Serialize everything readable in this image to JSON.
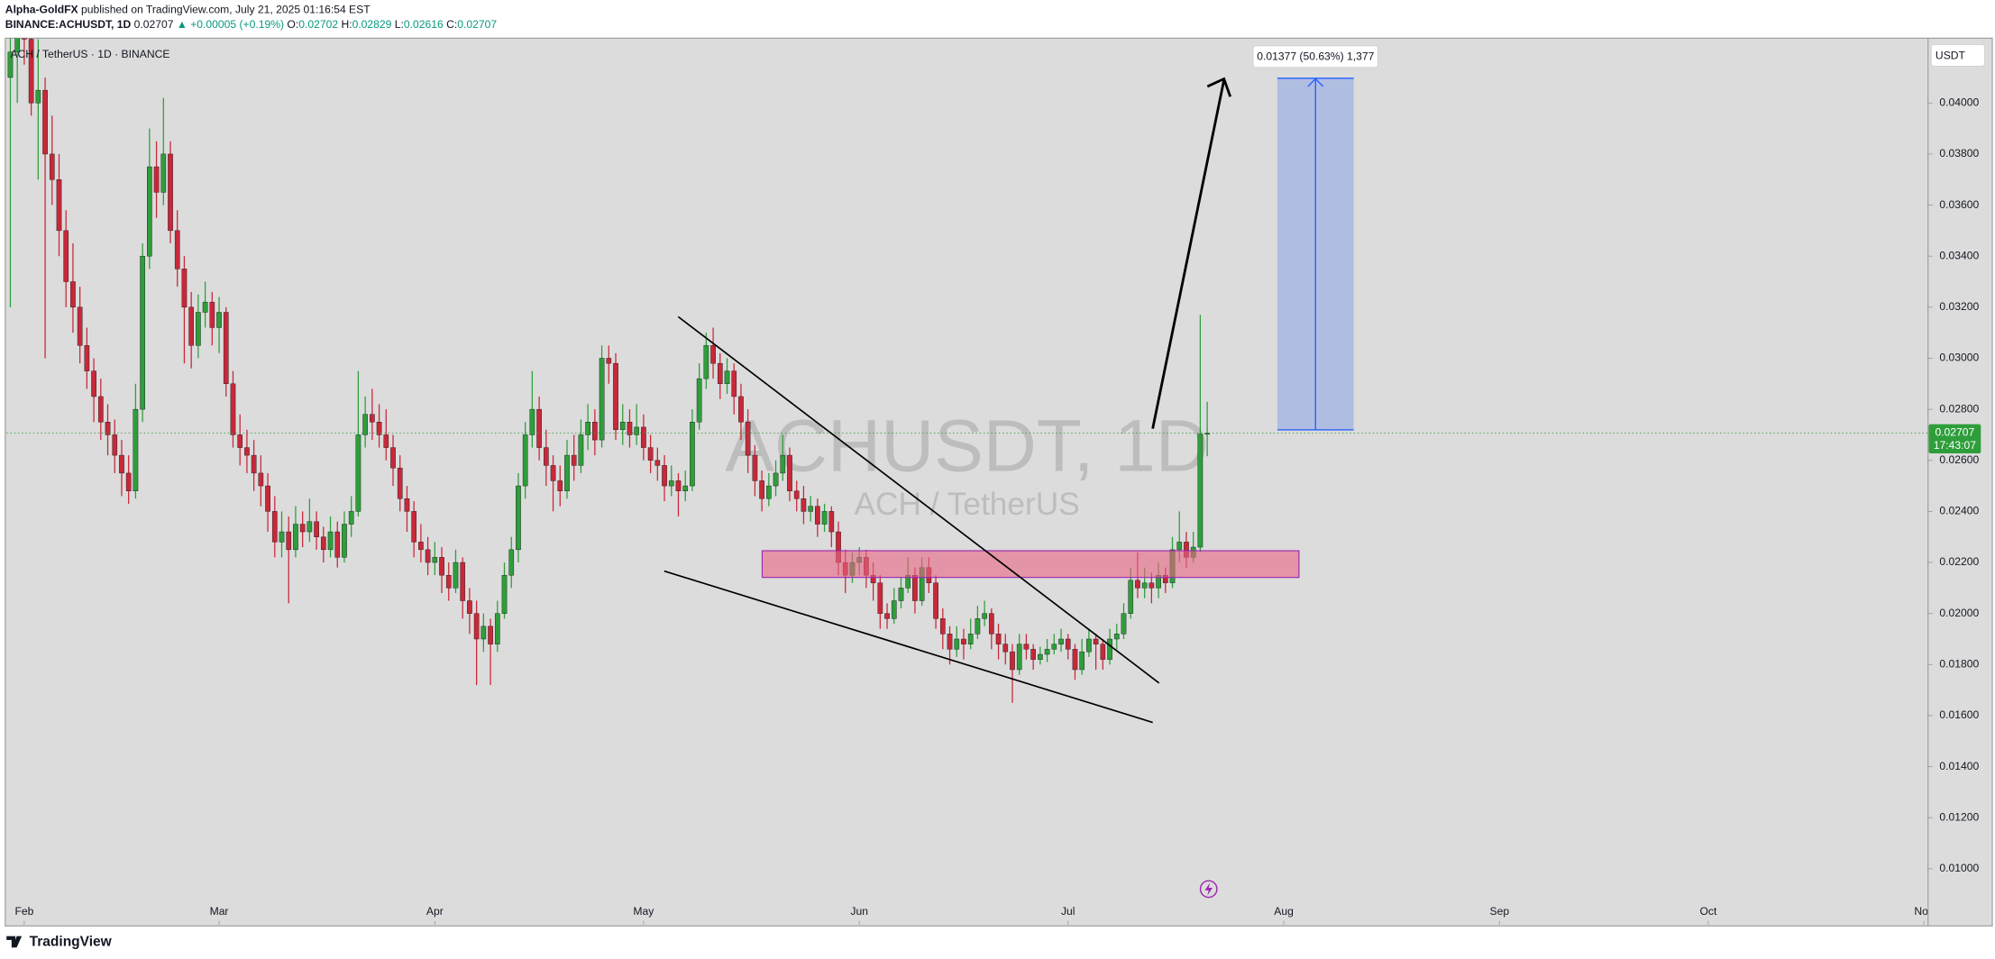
{
  "header": {
    "publisher": "Alpha-GoldFX",
    "published": "published on TradingView.com, July 21, 2025 01:16:54 EST",
    "symbol": "BINANCE:ACHUSDT, 1D",
    "last": "0.02707",
    "change": "▲ +0.00005 (+0.19%)",
    "ohlc": [
      {
        "key": "O:",
        "value": "0.02702"
      },
      {
        "key": "H:",
        "value": "0.02829"
      },
      {
        "key": "L:",
        "value": "0.02616"
      },
      {
        "key": "C:",
        "value": "0.02707"
      }
    ]
  },
  "chart_data": {
    "type": "candlestick",
    "legend": "ACH / TetherUS · 1D · BINANCE",
    "watermark": "ACHUSDT, 1D",
    "watermark_subtitle": "ACH / TetherUS",
    "currency": "USDT",
    "up_color": "#2e9e3b",
    "down_color": "#c8283a",
    "last_price": 0.02707,
    "countdown": "17:43:07",
    "target_label": "0.01377 (50.63%) 1,377",
    "footer": "TradingView",
    "xlim": [
      -0.55,
      275.5
    ],
    "xticks": [
      {
        "value": 2,
        "label": "Feb"
      },
      {
        "value": 30,
        "label": "Mar"
      },
      {
        "value": 61,
        "label": "Apr"
      },
      {
        "value": 91,
        "label": "May"
      },
      {
        "value": 122,
        "label": "Jun"
      },
      {
        "value": 152,
        "label": "Jul"
      },
      {
        "value": 183,
        "label": "Aug"
      },
      {
        "value": 214,
        "label": "Sep"
      },
      {
        "value": 244,
        "label": "Oct"
      },
      {
        "value": 275,
        "label": "Nov"
      }
    ],
    "ylim": [
      0.00781,
      0.04254
    ],
    "yticks": [
      {
        "value": 0.01,
        "label": "0.01000"
      },
      {
        "value": 0.012,
        "label": "0.01200"
      },
      {
        "value": 0.014,
        "label": "0.01400"
      },
      {
        "value": 0.016,
        "label": "0.01600"
      },
      {
        "value": 0.018,
        "label": "0.01800"
      },
      {
        "value": 0.02,
        "label": "0.02000"
      },
      {
        "value": 0.022,
        "label": "0.02200"
      },
      {
        "value": 0.024,
        "label": "0.02400"
      },
      {
        "value": 0.026,
        "label": "0.02600"
      },
      {
        "value": 0.028,
        "label": "0.02800"
      },
      {
        "value": 0.03,
        "label": "0.03000"
      },
      {
        "value": 0.032,
        "label": "0.03200"
      },
      {
        "value": 0.034,
        "label": "0.03400"
      },
      {
        "value": 0.036,
        "label": "0.03600"
      },
      {
        "value": 0.038,
        "label": "0.03800"
      },
      {
        "value": 0.04,
        "label": "0.04000"
      }
    ],
    "ohlc": [
      [
        0.041,
        0.044,
        0.032,
        0.042
      ],
      [
        0.042,
        0.0445,
        0.04,
        0.0435
      ],
      [
        0.0435,
        0.0445,
        0.0415,
        0.0425
      ],
      [
        0.0425,
        0.043,
        0.0395,
        0.04
      ],
      [
        0.04,
        0.0425,
        0.037,
        0.0405
      ],
      [
        0.0405,
        0.041,
        0.03,
        0.038
      ],
      [
        0.038,
        0.0395,
        0.036,
        0.037
      ],
      [
        0.037,
        0.038,
        0.034,
        0.035
      ],
      [
        0.035,
        0.0358,
        0.032,
        0.033
      ],
      [
        0.033,
        0.0345,
        0.031,
        0.032
      ],
      [
        0.032,
        0.0328,
        0.0298,
        0.0305
      ],
      [
        0.0305,
        0.0312,
        0.0288,
        0.0295
      ],
      [
        0.0295,
        0.03,
        0.0275,
        0.0285
      ],
      [
        0.0285,
        0.0292,
        0.0268,
        0.0275
      ],
      [
        0.0275,
        0.0282,
        0.0262,
        0.027
      ],
      [
        0.027,
        0.0276,
        0.0255,
        0.0262
      ],
      [
        0.0262,
        0.0268,
        0.0246,
        0.0255
      ],
      [
        0.0255,
        0.0262,
        0.0243,
        0.0248
      ],
      [
        0.0248,
        0.029,
        0.0245,
        0.028
      ],
      [
        0.028,
        0.0345,
        0.0275,
        0.034
      ],
      [
        0.034,
        0.039,
        0.0335,
        0.0375
      ],
      [
        0.0375,
        0.0385,
        0.0355,
        0.0365
      ],
      [
        0.0365,
        0.0402,
        0.036,
        0.038
      ],
      [
        0.038,
        0.0385,
        0.0345,
        0.035
      ],
      [
        0.035,
        0.0358,
        0.0328,
        0.0335
      ],
      [
        0.0335,
        0.034,
        0.0298,
        0.032
      ],
      [
        0.032,
        0.0326,
        0.0296,
        0.0305
      ],
      [
        0.0305,
        0.0325,
        0.03,
        0.0318
      ],
      [
        0.0318,
        0.033,
        0.0312,
        0.0322
      ],
      [
        0.0322,
        0.0326,
        0.0305,
        0.0312
      ],
      [
        0.0312,
        0.0324,
        0.0302,
        0.0318
      ],
      [
        0.0318,
        0.032,
        0.0285,
        0.029
      ],
      [
        0.029,
        0.0295,
        0.0265,
        0.027
      ],
      [
        0.027,
        0.0278,
        0.0258,
        0.0265
      ],
      [
        0.0265,
        0.0272,
        0.0255,
        0.0262
      ],
      [
        0.0262,
        0.0268,
        0.0248,
        0.0255
      ],
      [
        0.0255,
        0.0262,
        0.0242,
        0.025
      ],
      [
        0.025,
        0.0255,
        0.0232,
        0.024
      ],
      [
        0.024,
        0.0246,
        0.0222,
        0.0228
      ],
      [
        0.0228,
        0.024,
        0.0222,
        0.0232
      ],
      [
        0.0232,
        0.0238,
        0.0204,
        0.0225
      ],
      [
        0.0225,
        0.0242,
        0.0222,
        0.0235
      ],
      [
        0.0235,
        0.024,
        0.0226,
        0.0232
      ],
      [
        0.0232,
        0.0245,
        0.0228,
        0.0236
      ],
      [
        0.0236,
        0.024,
        0.0225,
        0.023
      ],
      [
        0.023,
        0.0234,
        0.022,
        0.0225
      ],
      [
        0.0225,
        0.0238,
        0.0222,
        0.0232
      ],
      [
        0.0232,
        0.0236,
        0.0218,
        0.0222
      ],
      [
        0.0222,
        0.024,
        0.022,
        0.0235
      ],
      [
        0.0235,
        0.0246,
        0.023,
        0.024
      ],
      [
        0.024,
        0.0295,
        0.0238,
        0.027
      ],
      [
        0.027,
        0.0285,
        0.0265,
        0.0278
      ],
      [
        0.0278,
        0.0288,
        0.0268,
        0.0275
      ],
      [
        0.0275,
        0.0282,
        0.0265,
        0.027
      ],
      [
        0.027,
        0.028,
        0.026,
        0.0265
      ],
      [
        0.0265,
        0.027,
        0.025,
        0.0257
      ],
      [
        0.0257,
        0.0262,
        0.024,
        0.0245
      ],
      [
        0.0245,
        0.025,
        0.0232,
        0.024
      ],
      [
        0.024,
        0.0244,
        0.0222,
        0.0228
      ],
      [
        0.0228,
        0.0235,
        0.022,
        0.0225
      ],
      [
        0.0225,
        0.023,
        0.0215,
        0.022
      ],
      [
        0.022,
        0.0228,
        0.0215,
        0.0222
      ],
      [
        0.0222,
        0.0226,
        0.0208,
        0.0215
      ],
      [
        0.0215,
        0.022,
        0.0205,
        0.021
      ],
      [
        0.021,
        0.0225,
        0.0208,
        0.022
      ],
      [
        0.022,
        0.0222,
        0.0198,
        0.0205
      ],
      [
        0.0205,
        0.021,
        0.0192,
        0.02
      ],
      [
        0.02,
        0.0205,
        0.0172,
        0.019
      ],
      [
        0.019,
        0.02,
        0.0185,
        0.0195
      ],
      [
        0.0195,
        0.0198,
        0.0172,
        0.0188
      ],
      [
        0.0188,
        0.0205,
        0.0185,
        0.02
      ],
      [
        0.02,
        0.022,
        0.0198,
        0.0215
      ],
      [
        0.0215,
        0.023,
        0.021,
        0.0225
      ],
      [
        0.0225,
        0.0255,
        0.022,
        0.025
      ],
      [
        0.025,
        0.0275,
        0.0245,
        0.027
      ],
      [
        0.027,
        0.0295,
        0.0265,
        0.028
      ],
      [
        0.028,
        0.0285,
        0.026,
        0.0265
      ],
      [
        0.0265,
        0.0272,
        0.025,
        0.0258
      ],
      [
        0.0258,
        0.0262,
        0.024,
        0.0252
      ],
      [
        0.0252,
        0.0258,
        0.0242,
        0.0248
      ],
      [
        0.0248,
        0.0268,
        0.0245,
        0.0262
      ],
      [
        0.0262,
        0.027,
        0.0252,
        0.0258
      ],
      [
        0.0258,
        0.0276,
        0.0255,
        0.027
      ],
      [
        0.027,
        0.0282,
        0.0264,
        0.0275
      ],
      [
        0.0275,
        0.028,
        0.0262,
        0.0268
      ],
      [
        0.0268,
        0.0305,
        0.0265,
        0.03
      ],
      [
        0.03,
        0.0305,
        0.029,
        0.0298
      ],
      [
        0.0298,
        0.0302,
        0.0268,
        0.0272
      ],
      [
        0.0272,
        0.0282,
        0.0266,
        0.0275
      ],
      [
        0.0275,
        0.028,
        0.0265,
        0.027
      ],
      [
        0.027,
        0.0282,
        0.0266,
        0.0273
      ],
      [
        0.0273,
        0.0278,
        0.026,
        0.0265
      ],
      [
        0.0265,
        0.027,
        0.0255,
        0.026
      ],
      [
        0.026,
        0.0265,
        0.0252,
        0.0258
      ],
      [
        0.0258,
        0.0262,
        0.0244,
        0.025
      ],
      [
        0.025,
        0.0258,
        0.0246,
        0.0252
      ],
      [
        0.0252,
        0.0255,
        0.0238,
        0.0248
      ],
      [
        0.0248,
        0.0256,
        0.0244,
        0.025
      ],
      [
        0.025,
        0.028,
        0.0248,
        0.0275
      ],
      [
        0.0275,
        0.0298,
        0.0272,
        0.0292
      ],
      [
        0.0292,
        0.031,
        0.0288,
        0.0305
      ],
      [
        0.0305,
        0.0312,
        0.0292,
        0.0298
      ],
      [
        0.0298,
        0.0302,
        0.0284,
        0.029
      ],
      [
        0.029,
        0.03,
        0.0286,
        0.0295
      ],
      [
        0.0295,
        0.0298,
        0.0278,
        0.0285
      ],
      [
        0.0285,
        0.029,
        0.0268,
        0.0275
      ],
      [
        0.0275,
        0.028,
        0.0255,
        0.0262
      ],
      [
        0.0262,
        0.0266,
        0.0246,
        0.0252
      ],
      [
        0.0252,
        0.0256,
        0.024,
        0.0245
      ],
      [
        0.0245,
        0.0255,
        0.0242,
        0.025
      ],
      [
        0.025,
        0.026,
        0.0246,
        0.0255
      ],
      [
        0.0255,
        0.027,
        0.0252,
        0.0262
      ],
      [
        0.0262,
        0.0265,
        0.0244,
        0.0248
      ],
      [
        0.0248,
        0.0252,
        0.024,
        0.0245
      ],
      [
        0.0245,
        0.025,
        0.0235,
        0.024
      ],
      [
        0.024,
        0.0246,
        0.0236,
        0.0242
      ],
      [
        0.0242,
        0.0245,
        0.023,
        0.0235
      ],
      [
        0.0235,
        0.0243,
        0.0232,
        0.024
      ],
      [
        0.024,
        0.0242,
        0.0226,
        0.0232
      ],
      [
        0.0232,
        0.0236,
        0.0215,
        0.022
      ],
      [
        0.022,
        0.0225,
        0.0208,
        0.0215
      ],
      [
        0.0215,
        0.0224,
        0.0212,
        0.022
      ],
      [
        0.022,
        0.0226,
        0.0215,
        0.0222
      ],
      [
        0.0222,
        0.0225,
        0.021,
        0.0215
      ],
      [
        0.0215,
        0.022,
        0.0205,
        0.0212
      ],
      [
        0.0212,
        0.0215,
        0.0194,
        0.02
      ],
      [
        0.02,
        0.0204,
        0.0194,
        0.0198
      ],
      [
        0.0198,
        0.021,
        0.0196,
        0.0205
      ],
      [
        0.0205,
        0.0214,
        0.0202,
        0.021
      ],
      [
        0.021,
        0.0222,
        0.0208,
        0.0215
      ],
      [
        0.0215,
        0.0218,
        0.02,
        0.0205
      ],
      [
        0.0205,
        0.0222,
        0.0203,
        0.0218
      ],
      [
        0.0218,
        0.0222,
        0.0208,
        0.0212
      ],
      [
        0.0212,
        0.0215,
        0.0194,
        0.0198
      ],
      [
        0.0198,
        0.0202,
        0.0186,
        0.0192
      ],
      [
        0.0192,
        0.0195,
        0.018,
        0.0186
      ],
      [
        0.0186,
        0.0195,
        0.0183,
        0.019
      ],
      [
        0.019,
        0.0194,
        0.0182,
        0.0188
      ],
      [
        0.0188,
        0.0198,
        0.0186,
        0.0192
      ],
      [
        0.0192,
        0.0203,
        0.019,
        0.0198
      ],
      [
        0.0198,
        0.0205,
        0.0195,
        0.02
      ],
      [
        0.02,
        0.0202,
        0.0186,
        0.0192
      ],
      [
        0.0192,
        0.0196,
        0.0182,
        0.0188
      ],
      [
        0.0188,
        0.0192,
        0.018,
        0.0185
      ],
      [
        0.0185,
        0.0188,
        0.0165,
        0.0178
      ],
      [
        0.0178,
        0.0192,
        0.0176,
        0.0188
      ],
      [
        0.0188,
        0.0192,
        0.0182,
        0.0186
      ],
      [
        0.0186,
        0.0188,
        0.0178,
        0.0182
      ],
      [
        0.0182,
        0.0187,
        0.018,
        0.0184
      ],
      [
        0.0184,
        0.019,
        0.0181,
        0.0186
      ],
      [
        0.0186,
        0.0192,
        0.0184,
        0.0188
      ],
      [
        0.0188,
        0.0194,
        0.0185,
        0.019
      ],
      [
        0.019,
        0.0192,
        0.0182,
        0.0186
      ],
      [
        0.0186,
        0.0188,
        0.0174,
        0.0178
      ],
      [
        0.0178,
        0.019,
        0.0176,
        0.0185
      ],
      [
        0.0185,
        0.0194,
        0.0183,
        0.019
      ],
      [
        0.019,
        0.0192,
        0.0178,
        0.0188
      ],
      [
        0.0188,
        0.019,
        0.0178,
        0.0182
      ],
      [
        0.0182,
        0.0194,
        0.018,
        0.019
      ],
      [
        0.019,
        0.0196,
        0.0186,
        0.0192
      ],
      [
        0.0192,
        0.0204,
        0.019,
        0.02
      ],
      [
        0.02,
        0.0218,
        0.0198,
        0.0213
      ],
      [
        0.0213,
        0.0224,
        0.0206,
        0.021
      ],
      [
        0.021,
        0.0218,
        0.0206,
        0.0212
      ],
      [
        0.0212,
        0.0216,
        0.0204,
        0.021
      ],
      [
        0.021,
        0.022,
        0.0206,
        0.0215
      ],
      [
        0.0215,
        0.0218,
        0.0208,
        0.0212
      ],
      [
        0.0212,
        0.023,
        0.021,
        0.0225
      ],
      [
        0.0225,
        0.024,
        0.022,
        0.0228
      ],
      [
        0.0228,
        0.0232,
        0.0218,
        0.0222
      ],
      [
        0.0222,
        0.0232,
        0.022,
        0.0226
      ],
      [
        0.0226,
        0.0317,
        0.0224,
        0.02702
      ],
      [
        0.02702,
        0.02829,
        0.02616,
        0.02707
      ]
    ]
  }
}
